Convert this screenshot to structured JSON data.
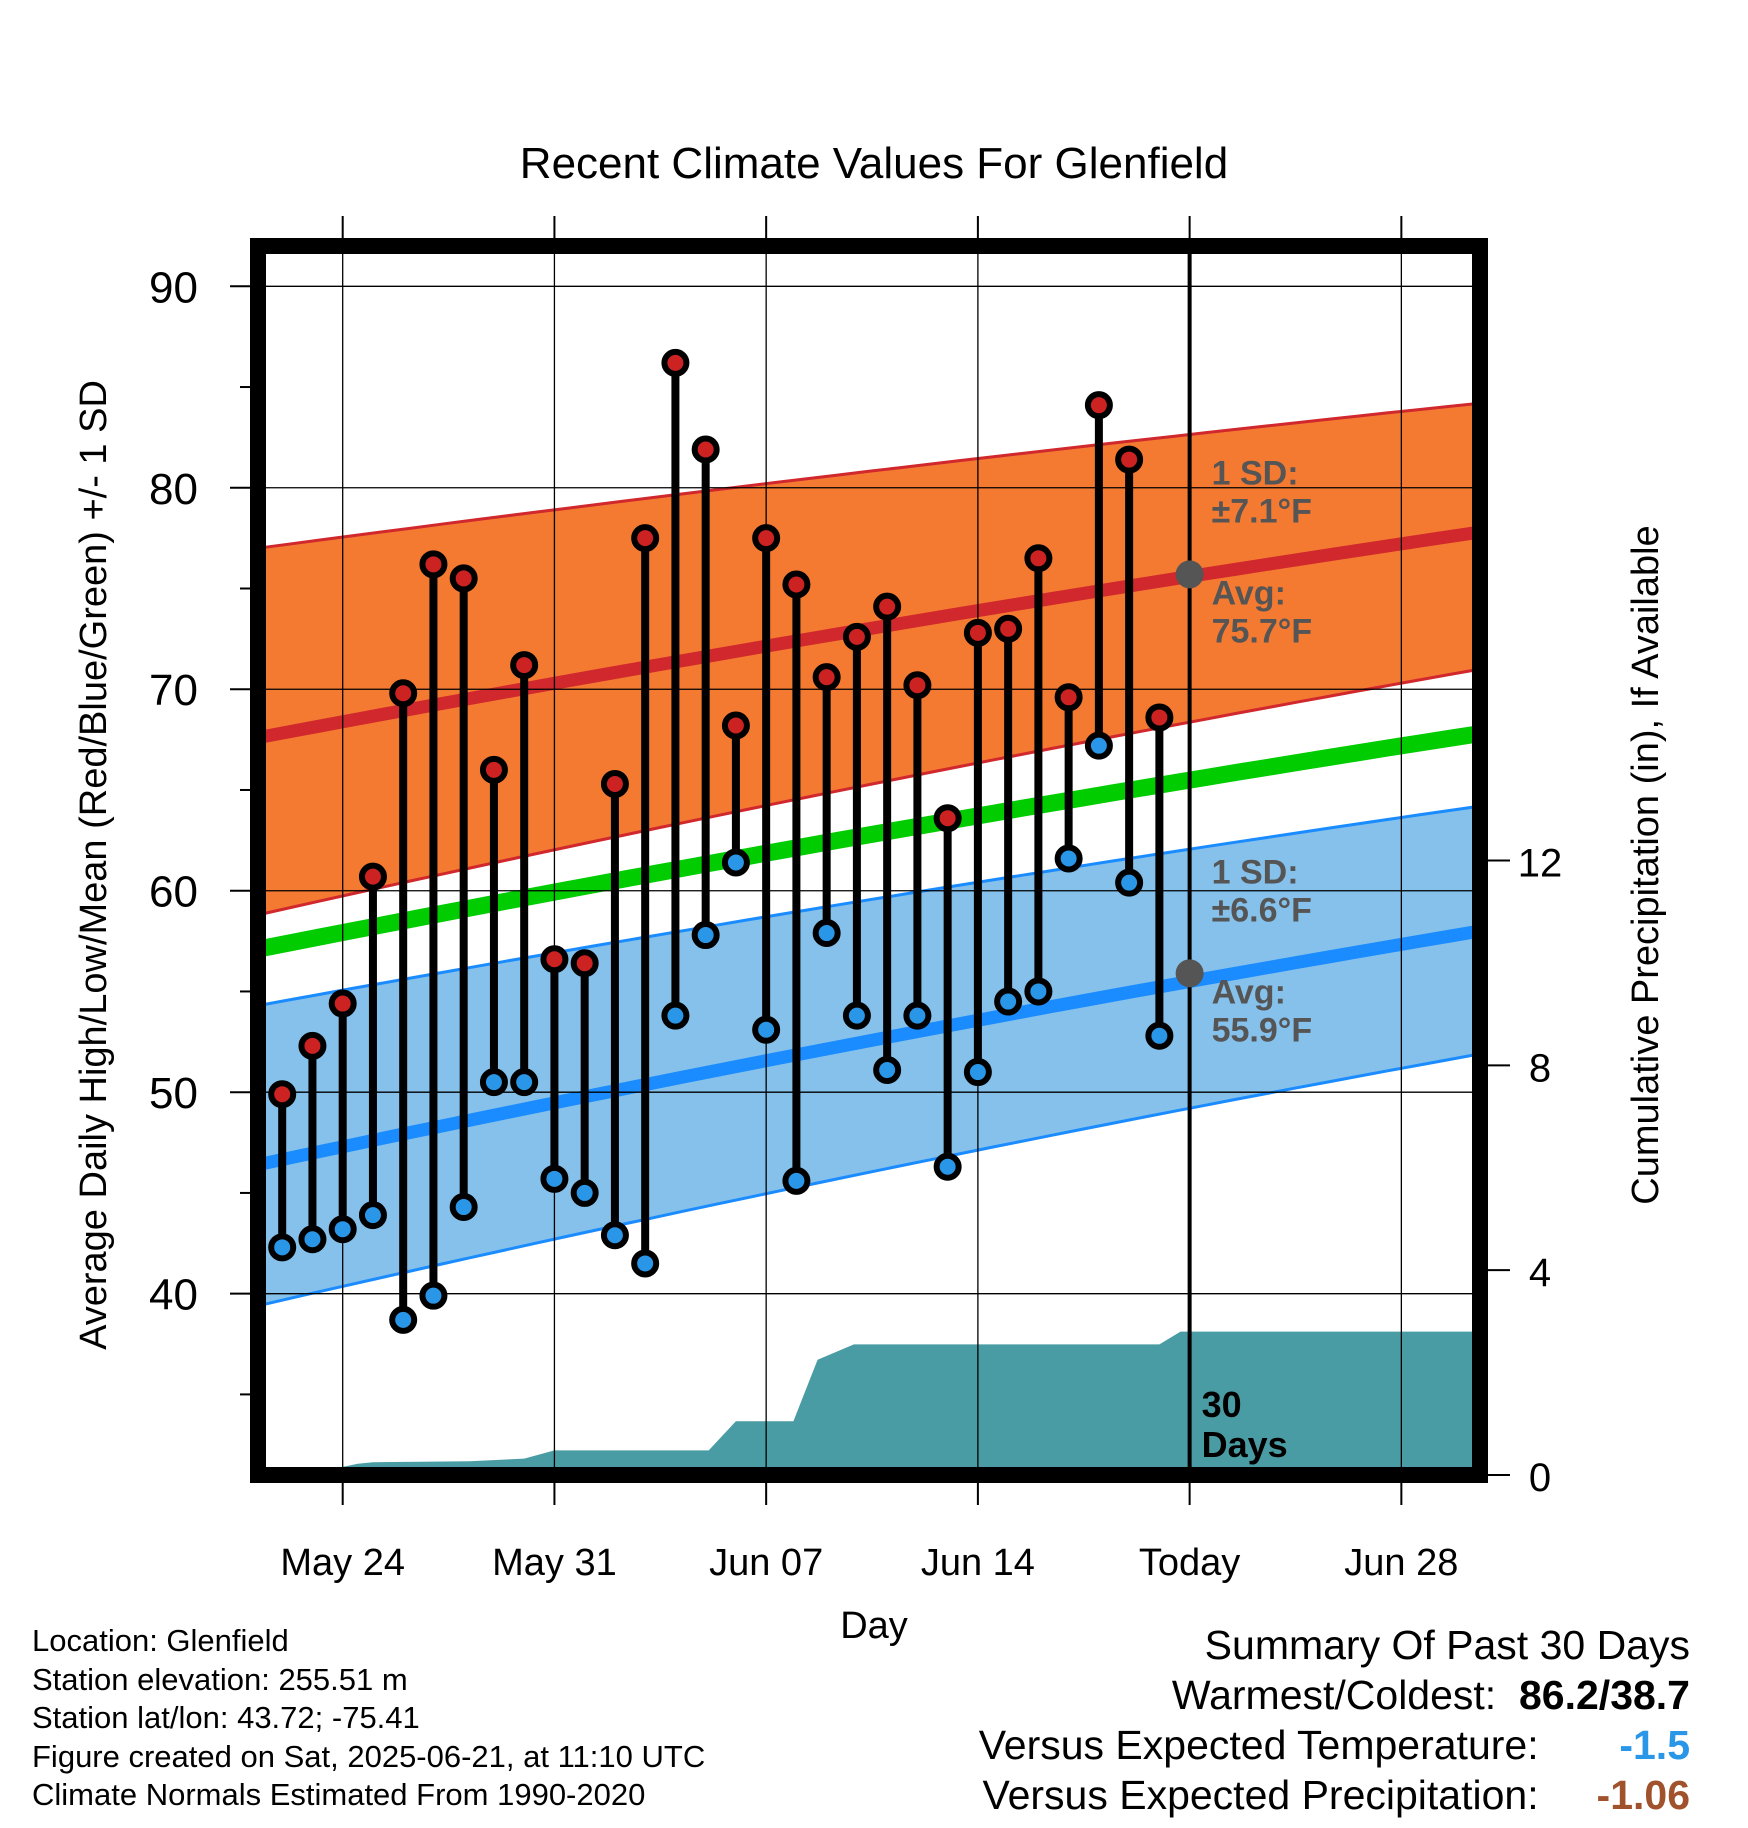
{
  "chart_data": {
    "type": "line",
    "title": "Recent Climate Values For Glenfield",
    "xlabel": "Day",
    "ylabel": "Average Daily High/Low/Mean (Red/Blue/Green) +/- 1 SD",
    "y2label": "Cumulative Precipitation (in), If Available",
    "x_ticks": [
      "May 24",
      "May 31",
      "Jun 07",
      "Jun 14",
      "Today",
      "Jun 28"
    ],
    "x_tick_days": [
      0,
      7,
      14,
      21,
      28,
      35
    ],
    "xlim": [
      -2.8,
      37.6
    ],
    "ylim": [
      31,
      92
    ],
    "y_ticks": [
      40,
      50,
      60,
      70,
      80,
      90
    ],
    "y2lim": [
      0,
      24
    ],
    "y2_ticks": [
      0,
      4,
      8,
      12
    ],
    "grid": true,
    "days_offset_from_may24": [
      -2,
      -1,
      0,
      1,
      2,
      3,
      4,
      5,
      6,
      7,
      8,
      9,
      10,
      11,
      12,
      13,
      14,
      15,
      16,
      17,
      18,
      19,
      20,
      21,
      22,
      23,
      24,
      25,
      26,
      27
    ],
    "daily_high": [
      49.9,
      52.3,
      54.4,
      60.7,
      69.8,
      76.2,
      75.5,
      66.0,
      71.2,
      56.6,
      56.4,
      65.3,
      77.5,
      86.2,
      81.9,
      68.2,
      77.5,
      75.2,
      70.6,
      72.6,
      74.1,
      70.2,
      63.6,
      72.8,
      73.0,
      76.5,
      69.6,
      84.1,
      81.4,
      68.6
    ],
    "daily_low": [
      42.3,
      42.7,
      43.2,
      43.9,
      38.7,
      39.9,
      44.3,
      50.5,
      50.5,
      45.7,
      45.0,
      42.9,
      41.5,
      53.8,
      57.8,
      61.4,
      53.1,
      45.6,
      57.9,
      53.8,
      51.1,
      53.8,
      46.3,
      51.0,
      54.5,
      55.0,
      61.6,
      67.2,
      60.4,
      52.8
    ],
    "normals_days": [
      -2.8,
      37.6
    ],
    "normal_high": [
      67.6,
      77.8
    ],
    "normal_high_sd_upper": [
      77.0,
      84.2
    ],
    "normal_high_sd_lower": [
      58.8,
      71.0
    ],
    "normal_mean": [
      57.1,
      67.8
    ],
    "normal_low": [
      46.4,
      58.0
    ],
    "normal_low_sd_upper": [
      54.3,
      64.2
    ],
    "normal_low_sd_lower": [
      39.4,
      51.9
    ],
    "precip_days": [
      -2.8,
      -1.3,
      0.5,
      1.0,
      4.2,
      6.0,
      7.0,
      12.1,
      13.0,
      14.9,
      15.7,
      16.9,
      18.0,
      27.0,
      27.7,
      37.6
    ],
    "precip_cum_in": [
      0.0,
      0.0,
      0.22,
      0.25,
      0.27,
      0.32,
      0.48,
      0.48,
      1.05,
      1.05,
      2.25,
      2.55,
      2.55,
      2.55,
      2.8,
      2.8
    ],
    "today_day": 28,
    "high_annotation": {
      "sd_label": "1 SD:",
      "sd_value": "±7.1°F",
      "avg_label": "Avg:",
      "avg_value": "75.7°F",
      "avg": 75.7
    },
    "low_annotation": {
      "sd_label": "1 SD:",
      "sd_value": "±6.6°F",
      "avg_label": "Avg:",
      "avg_value": "55.9°F",
      "avg": 55.9
    },
    "days_label_line1": "30",
    "days_label_line2": "Days",
    "colors": {
      "high_band": "#f47a32",
      "high_line": "#d0282c",
      "low_band": "#85c1ea",
      "low_line": "#1a8cff",
      "mean_line": "#00cc00",
      "precip": "#4a9ca4",
      "high_marker": "#cc2222",
      "low_marker": "#2a96e8",
      "annotation": "#555555"
    }
  },
  "meta": {
    "location": "Location: Glenfield",
    "elevation": "Station elevation: 255.51 m",
    "latlon": "Station lat/lon: 43.72; -75.41",
    "created": "Figure created on Sat, 2025-06-21, at 11:10 UTC",
    "normals": "Climate Normals Estimated From 1990-2020"
  },
  "summary": {
    "title": "Summary Of Past 30 Days",
    "warmest_coldest_label": "Warmest/Coldest:",
    "warmest_coldest_value": "86.2/38.7",
    "temp_label": "Versus Expected Temperature:",
    "temp_value": "-1.5",
    "temp_color": "#2a96e8",
    "precip_label": "Versus Expected Precipitation:",
    "precip_value": "-1.06",
    "precip_color": "#a0522d"
  }
}
